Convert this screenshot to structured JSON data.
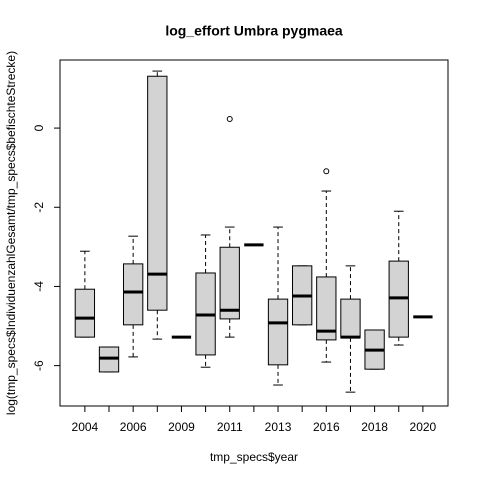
{
  "chart_data": {
    "type": "box",
    "title": "log_effort Umbra pygmaea",
    "x_label": "tmp_specs$year",
    "y_label": "log(tmp_specs$IndividuenzahlGesamt/tmp_specs$befischteStrecke)",
    "categories": [
      "2004",
      null,
      "2006",
      null,
      "2009",
      null,
      "2011",
      null,
      "2013",
      null,
      "2016",
      null,
      "2018",
      null,
      "2020"
    ],
    "min": [
      -5.28,
      -6.16,
      -5.78,
      -5.33,
      -5.28,
      -6.04,
      -5.28,
      -2.95,
      -6.49,
      -4.97,
      -5.91,
      -6.67,
      -6.09,
      -5.48,
      -4.77
    ],
    "q1": [
      -5.28,
      -6.16,
      -4.97,
      -4.6,
      -5.28,
      -5.73,
      -4.82,
      -2.95,
      -5.98,
      -4.97,
      -5.35,
      -5.3,
      -6.09,
      -5.28,
      -4.77
    ],
    "median": [
      -4.8,
      -5.81,
      -4.14,
      -3.69,
      -5.28,
      -4.72,
      -4.6,
      -2.95,
      -4.92,
      -4.24,
      -5.13,
      -5.28,
      -5.61,
      -4.29,
      -4.77
    ],
    "q3": [
      -4.07,
      -5.53,
      -3.43,
      1.31,
      -5.28,
      -3.66,
      -3.01,
      -2.95,
      -4.32,
      -3.48,
      -3.76,
      -4.32,
      -5.1,
      -3.36,
      -4.77
    ],
    "max": [
      -3.11,
      -5.53,
      -2.73,
      1.44,
      -5.28,
      -2.7,
      -2.5,
      -2.95,
      -2.5,
      -3.48,
      -1.59,
      -3.48,
      -5.1,
      -2.1,
      -4.77
    ],
    "outliers": [
      [],
      [],
      [],
      [],
      [],
      [],
      [
        0.23
      ],
      [],
      [],
      [],
      [
        -1.09
      ],
      [],
      [],
      [],
      []
    ],
    "color": "#d3d3d3",
    "ylim": [
      -7.02,
      1.72
    ],
    "yticks": [
      -6,
      -4,
      -2,
      0
    ]
  }
}
